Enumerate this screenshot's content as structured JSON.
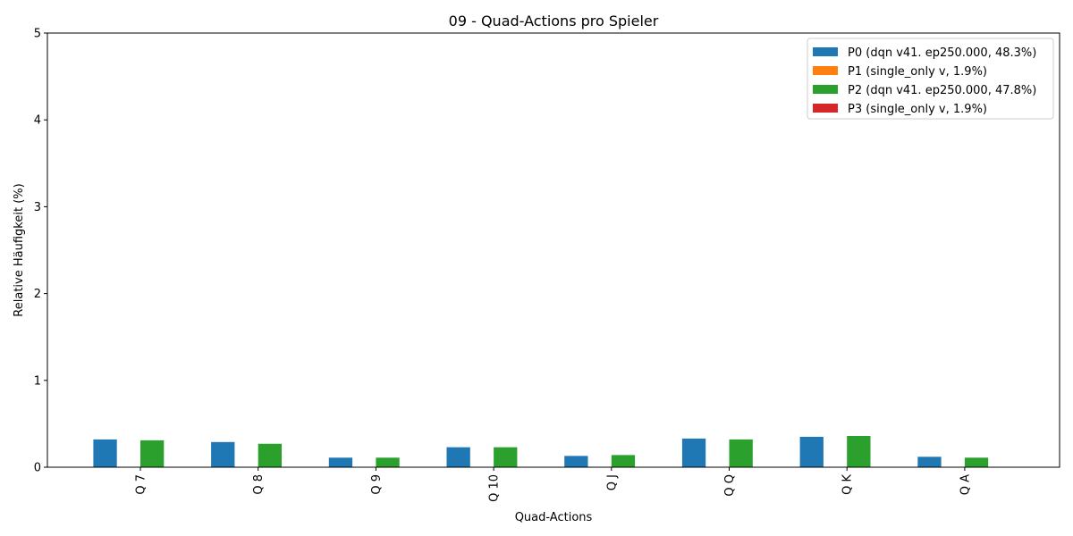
{
  "chart_data": {
    "type": "bar",
    "title": "09 - Quad-Actions pro Spieler",
    "xlabel": "Quad-Actions",
    "ylabel": "Relative Häufigkeit (%)",
    "categories": [
      "Q 7",
      "Q 8",
      "Q 9",
      "Q 10",
      "Q J",
      "Q Q",
      "Q K",
      "Q A"
    ],
    "ylim": [
      0,
      5
    ],
    "yticks": [
      "0",
      "1",
      "2",
      "3",
      "4",
      "5"
    ],
    "grid": false,
    "legend_position": "top-right",
    "series": [
      {
        "name": "P0 (dqn v41. ep250.000, 48.3%)",
        "color": "#1f77b4",
        "values": [
          0.32,
          0.29,
          0.11,
          0.23,
          0.13,
          0.33,
          0.35,
          0.12
        ]
      },
      {
        "name": "P1 (single_only v, 1.9%)",
        "color": "#ff7f0e",
        "values": [
          0,
          0,
          0,
          0,
          0,
          0,
          0,
          0
        ]
      },
      {
        "name": "P2 (dqn v41. ep250.000, 47.8%)",
        "color": "#2ca02c",
        "values": [
          0.31,
          0.27,
          0.11,
          0.23,
          0.14,
          0.32,
          0.36,
          0.11
        ]
      },
      {
        "name": "P3 (single_only v, 1.9%)",
        "color": "#d62728",
        "values": [
          0,
          0,
          0,
          0,
          0,
          0,
          0,
          0
        ]
      }
    ]
  }
}
